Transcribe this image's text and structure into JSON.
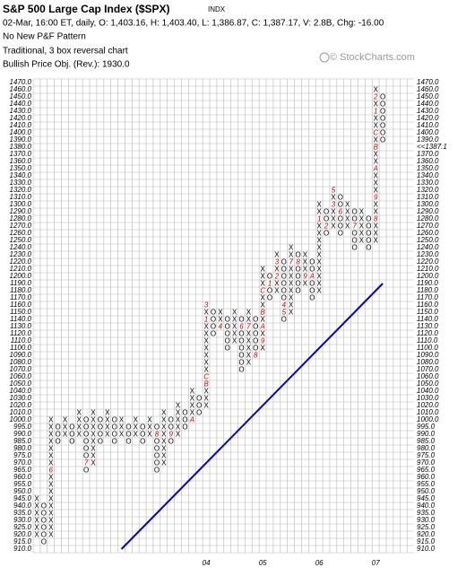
{
  "header": {
    "title": "S&P 500 Large Cap Index ($SPX)",
    "exchange": "INDX",
    "quote": "02-Mar, 16:00 ET, daily, O: 1,403.16, H: 1,403.40, L: 1,386.87, C: 1,387.17, V: 2.8B, Chg: -16.00",
    "pattern": "No New P&F Pattern",
    "method": "Traditional, 3 box reversal chart",
    "objective": "Bullish Price Obj. (Rev.): 1930.0",
    "watermark": "© StockCharts.com"
  },
  "chart_data": {
    "type": "point-and-figure",
    "yticks": [
      {
        "value": 1470,
        "label": "1470.0"
      },
      {
        "value": 1460,
        "label": "1460.0"
      },
      {
        "value": 1450,
        "label": "1450.0"
      },
      {
        "value": 1440,
        "label": "1440.0"
      },
      {
        "value": 1430,
        "label": "1430.0"
      },
      {
        "value": 1420,
        "label": "1420.0"
      },
      {
        "value": 1410,
        "label": "1410.0"
      },
      {
        "value": 1400,
        "label": "1400.0"
      },
      {
        "value": 1390,
        "label": "1390.0"
      },
      {
        "value": 1380,
        "label": "1380.0"
      },
      {
        "value": 1370,
        "label": "1370.0"
      },
      {
        "value": 1360,
        "label": "1360.0"
      },
      {
        "value": 1350,
        "label": "1350.0"
      },
      {
        "value": 1340,
        "label": "1340.0"
      },
      {
        "value": 1330,
        "label": "1330.0"
      },
      {
        "value": 1320,
        "label": "1320.0"
      },
      {
        "value": 1310,
        "label": "1310.0"
      },
      {
        "value": 1300,
        "label": "1300.0"
      },
      {
        "value": 1290,
        "label": "1290.0"
      },
      {
        "value": 1280,
        "label": "1280.0"
      },
      {
        "value": 1270,
        "label": "1270.0"
      },
      {
        "value": 1260,
        "label": "1260.0"
      },
      {
        "value": 1250,
        "label": "1250.0"
      },
      {
        "value": 1240,
        "label": "1240.0"
      },
      {
        "value": 1230,
        "label": "1230.0"
      },
      {
        "value": 1220,
        "label": "1220.0"
      },
      {
        "value": 1210,
        "label": "1210.0"
      },
      {
        "value": 1200,
        "label": "1200.0"
      },
      {
        "value": 1190,
        "label": "1190.0"
      },
      {
        "value": 1180,
        "label": "1180.0"
      },
      {
        "value": 1170,
        "label": "1170.0"
      },
      {
        "value": 1160,
        "label": "1160.0"
      },
      {
        "value": 1150,
        "label": "1150.0"
      },
      {
        "value": 1140,
        "label": "1140.0"
      },
      {
        "value": 1130,
        "label": "1130.0"
      },
      {
        "value": 1120,
        "label": "1120.0"
      },
      {
        "value": 1110,
        "label": "1110.0"
      },
      {
        "value": 1100,
        "label": "1100.0"
      },
      {
        "value": 1090,
        "label": "1090.0"
      },
      {
        "value": 1080,
        "label": "1080.0"
      },
      {
        "value": 1070,
        "label": "1070.0"
      },
      {
        "value": 1060,
        "label": "1060.0"
      },
      {
        "value": 1050,
        "label": "1050.0"
      },
      {
        "value": 1040,
        "label": "1040.0"
      },
      {
        "value": 1030,
        "label": "1030.0"
      },
      {
        "value": 1020,
        "label": "1020.0"
      },
      {
        "value": 1010,
        "label": "1010.0"
      },
      {
        "value": 1000,
        "label": "1000.0"
      },
      {
        "value": 995,
        "label": "995.0"
      },
      {
        "value": 990,
        "label": "990.0"
      },
      {
        "value": 985,
        "label": "985.0"
      },
      {
        "value": 980,
        "label": "980.0"
      },
      {
        "value": 975,
        "label": "975.0"
      },
      {
        "value": 970,
        "label": "970.0"
      },
      {
        "value": 965,
        "label": "965.0"
      },
      {
        "value": 960,
        "label": "960.0"
      },
      {
        "value": 955,
        "label": "955.0"
      },
      {
        "value": 950,
        "label": "950.0"
      },
      {
        "value": 945,
        "label": "945.0"
      },
      {
        "value": 940,
        "label": "940.0"
      },
      {
        "value": 935,
        "label": "935.0"
      },
      {
        "value": 930,
        "label": "930.0"
      },
      {
        "value": 925,
        "label": "925.0"
      },
      {
        "value": 920,
        "label": "920.0"
      },
      {
        "value": 915,
        "label": "915.0"
      },
      {
        "value": 910,
        "label": "910.0"
      }
    ],
    "last_price": {
      "value": 1387.1,
      "label": "<<1387.1",
      "row": 1380,
      "color": "#cc0000"
    },
    "x_labels": [
      {
        "label": "04",
        "column": 24
      },
      {
        "label": "05",
        "column": 32
      },
      {
        "label": "06",
        "column": 40
      },
      {
        "label": "07",
        "column": 48
      }
    ],
    "columns": [
      {
        "type": "X",
        "low": 920,
        "high": 945
      },
      {
        "type": "O",
        "low": 915,
        "high": 940
      },
      {
        "type": "X",
        "low": 920,
        "high": 1000,
        "markers": [
          {
            "label": "6",
            "price": 965
          }
        ]
      },
      {
        "type": "O",
        "low": 985,
        "high": 995
      },
      {
        "type": "X",
        "low": 990,
        "high": 1000
      },
      {
        "type": "O",
        "low": 985,
        "high": 995
      },
      {
        "type": "X",
        "low": 990,
        "high": 1010
      },
      {
        "type": "O",
        "low": 965,
        "high": 1000,
        "markers": [
          {
            "label": "7",
            "price": 970
          }
        ]
      },
      {
        "type": "X",
        "low": 970,
        "high": 1010
      },
      {
        "type": "O",
        "low": 985,
        "high": 1000
      },
      {
        "type": "X",
        "low": 990,
        "high": 1010
      },
      {
        "type": "O",
        "low": 985,
        "high": 1000
      },
      {
        "type": "X",
        "low": 990,
        "high": 1000
      },
      {
        "type": "O",
        "low": 985,
        "high": 995
      },
      {
        "type": "X",
        "low": 990,
        "high": 1000
      },
      {
        "type": "O",
        "low": 985,
        "high": 995
      },
      {
        "type": "X",
        "low": 990,
        "high": 1000
      },
      {
        "type": "O",
        "low": 965,
        "high": 995,
        "markers": [
          {
            "label": "8",
            "price": 990
          }
        ]
      },
      {
        "type": "X",
        "low": 970,
        "high": 1010
      },
      {
        "type": "O",
        "low": 985,
        "high": 1000,
        "markers": [
          {
            "label": "9",
            "price": 990
          }
        ]
      },
      {
        "type": "X",
        "low": 990,
        "high": 1020
      },
      {
        "type": "O",
        "low": 995,
        "high": 1010
      },
      {
        "type": "X",
        "low": 1000,
        "high": 1040,
        "markers": [
          {
            "label": "A",
            "price": 1000
          }
        ]
      },
      {
        "type": "O",
        "low": 1010,
        "high": 1030
      },
      {
        "type": "X",
        "low": 1020,
        "high": 1160,
        "markers": [
          {
            "label": "B",
            "price": 1050
          },
          {
            "label": "C",
            "price": 1060
          },
          {
            "label": "1",
            "price": 1140
          },
          {
            "label": "3",
            "price": 1160
          }
        ]
      },
      {
        "type": "O",
        "low": 1120,
        "high": 1150
      },
      {
        "type": "X",
        "low": 1130,
        "high": 1150,
        "markers": [
          {
            "label": "4",
            "price": 1130
          }
        ]
      },
      {
        "type": "O",
        "low": 1100,
        "high": 1140
      },
      {
        "type": "X",
        "low": 1110,
        "high": 1150
      },
      {
        "type": "O",
        "low": 1070,
        "high": 1140,
        "markers": [
          {
            "label": "6",
            "price": 1130
          }
        ]
      },
      {
        "type": "X",
        "low": 1080,
        "high": 1150,
        "markers": [
          {
            "label": "7",
            "price": 1130
          }
        ]
      },
      {
        "type": "O",
        "low": 1090,
        "high": 1140,
        "markers": [
          {
            "label": "8",
            "price": 1090
          }
        ]
      },
      {
        "type": "X",
        "low": 1100,
        "high": 1210,
        "markers": [
          {
            "label": "9",
            "price": 1110
          },
          {
            "label": "A",
            "price": 1130
          },
          {
            "label": "B",
            "price": 1150
          },
          {
            "label": "C",
            "price": 1180
          }
        ]
      },
      {
        "type": "O",
        "low": 1170,
        "high": 1200,
        "markers": [
          {
            "label": "1",
            "price": 1190
          }
        ]
      },
      {
        "type": "X",
        "low": 1180,
        "high": 1230,
        "markers": [
          {
            "label": "2",
            "price": 1200
          },
          {
            "label": "3",
            "price": 1220
          }
        ]
      },
      {
        "type": "O",
        "low": 1140,
        "high": 1220,
        "markers": [
          {
            "label": "4",
            "price": 1160
          },
          {
            "label": "5",
            "price": 1150
          }
        ]
      },
      {
        "type": "X",
        "low": 1150,
        "high": 1240,
        "markers": [
          {
            "label": "7",
            "price": 1220
          }
        ]
      },
      {
        "type": "O",
        "low": 1180,
        "high": 1230,
        "markers": [
          {
            "label": "8",
            "price": 1220
          }
        ]
      },
      {
        "type": "X",
        "low": 1190,
        "high": 1230,
        "markers": [
          {
            "label": "9",
            "price": 1200
          }
        ]
      },
      {
        "type": "O",
        "low": 1170,
        "high": 1220,
        "markers": [
          {
            "label": "A",
            "price": 1200
          }
        ]
      },
      {
        "type": "X",
        "low": 1180,
        "high": 1300,
        "markers": [
          {
            "label": "1",
            "price": 1280
          }
        ]
      },
      {
        "type": "O",
        "low": 1260,
        "high": 1290,
        "markers": [
          {
            "label": "2",
            "price": 1270
          }
        ]
      },
      {
        "type": "X",
        "low": 1270,
        "high": 1320,
        "markers": [
          {
            "label": "3",
            "price": 1300
          },
          {
            "label": "5",
            "price": 1320
          }
        ]
      },
      {
        "type": "O",
        "low": 1260,
        "high": 1310,
        "markers": [
          {
            "label": "6",
            "price": 1290
          }
        ]
      },
      {
        "type": "X",
        "low": 1270,
        "high": 1300
      },
      {
        "type": "O",
        "low": 1240,
        "high": 1290,
        "markers": [
          {
            "label": "7",
            "price": 1270
          }
        ]
      },
      {
        "type": "X",
        "low": 1250,
        "high": 1290
      },
      {
        "type": "O",
        "low": 1240,
        "high": 1280
      },
      {
        "type": "X",
        "low": 1250,
        "high": 1460,
        "markers": [
          {
            "label": "8",
            "price": 1280
          },
          {
            "label": "9",
            "price": 1310
          },
          {
            "label": "A",
            "price": 1350
          },
          {
            "label": "B",
            "price": 1380
          },
          {
            "label": "C",
            "price": 1400
          },
          {
            "label": "1",
            "price": 1430
          },
          {
            "label": "2",
            "price": 1450
          }
        ]
      },
      {
        "type": "O",
        "low": 1390,
        "high": 1450
      }
    ],
    "trend_line": {
      "color": "#0000cc",
      "from_column": 12,
      "from_price": 910,
      "to_column": 49,
      "to_price": 1190
    }
  }
}
